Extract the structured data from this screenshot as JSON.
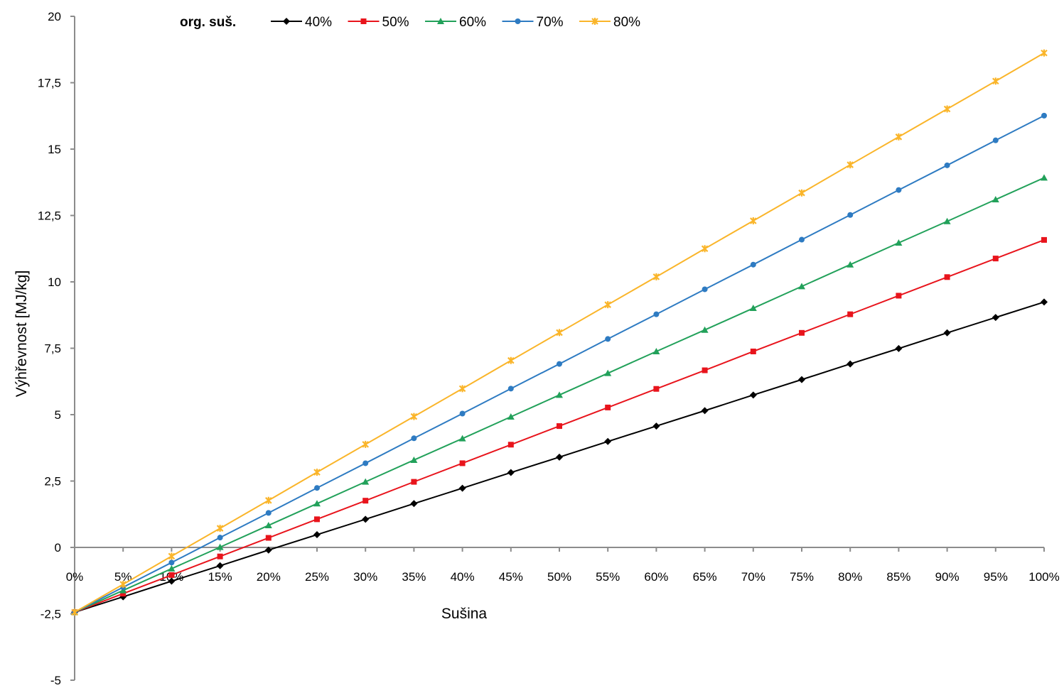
{
  "chart_data": {
    "type": "line",
    "title": "",
    "xlabel": "Sušina",
    "ylabel": "Výhřevnost [MJ/kg]",
    "ylim": [
      -5,
      20
    ],
    "yticks": [
      -5,
      -2.5,
      0,
      2.5,
      5,
      7.5,
      10,
      12.5,
      15,
      17.5,
      20
    ],
    "ytick_labels": [
      "-5",
      "-2,5",
      "0",
      "2,5",
      "5",
      "7,5",
      "10",
      "12,5",
      "15",
      "17,5",
      "20"
    ],
    "categories": [
      "0%",
      "5%",
      "10%",
      "15%",
      "20%",
      "25%",
      "30%",
      "35%",
      "40%",
      "45%",
      "50%",
      "55%",
      "60%",
      "65%",
      "70%",
      "75%",
      "80%",
      "85%",
      "90%",
      "95%",
      "100%"
    ],
    "grid": false,
    "legend": {
      "title": "org. suš.",
      "position": "top"
    },
    "series": [
      {
        "name": "40%",
        "color": "#000000",
        "marker": "diamond",
        "values": [
          -2.44,
          -1.86,
          -1.27,
          -0.69,
          -0.1,
          0.48,
          1.06,
          1.65,
          2.23,
          2.82,
          3.4,
          3.99,
          4.57,
          5.15,
          5.74,
          6.32,
          6.91,
          7.49,
          8.08,
          8.66,
          9.24
        ]
      },
      {
        "name": "50%",
        "color": "#e8141c",
        "marker": "square",
        "values": [
          -2.44,
          -1.74,
          -1.04,
          -0.34,
          0.36,
          1.06,
          1.76,
          2.47,
          3.17,
          3.87,
          4.57,
          5.27,
          5.97,
          6.67,
          7.38,
          8.08,
          8.78,
          9.48,
          10.18,
          10.88,
          11.58
        ]
      },
      {
        "name": "60%",
        "color": "#22a15a",
        "marker": "triangle",
        "values": [
          -2.44,
          -1.62,
          -0.8,
          0.01,
          0.83,
          1.65,
          2.47,
          3.29,
          4.1,
          4.92,
          5.74,
          6.56,
          7.38,
          8.19,
          9.01,
          9.83,
          10.65,
          11.47,
          12.28,
          13.1,
          13.92
        ]
      },
      {
        "name": "70%",
        "color": "#2e7bc2",
        "marker": "circle",
        "values": [
          -2.44,
          -1.5,
          -0.57,
          0.37,
          1.3,
          2.24,
          3.17,
          4.11,
          5.04,
          5.98,
          6.91,
          7.85,
          8.78,
          9.72,
          10.65,
          11.59,
          12.52,
          13.46,
          14.39,
          15.33,
          16.26
        ]
      },
      {
        "name": "80%",
        "color": "#fab52a",
        "marker": "star",
        "values": [
          -2.44,
          -1.39,
          -0.33,
          0.72,
          1.77,
          2.83,
          3.88,
          4.93,
          5.98,
          7.04,
          8.09,
          9.14,
          10.19,
          11.25,
          12.3,
          13.35,
          14.41,
          15.46,
          16.51,
          17.56,
          18.62
        ]
      }
    ]
  }
}
